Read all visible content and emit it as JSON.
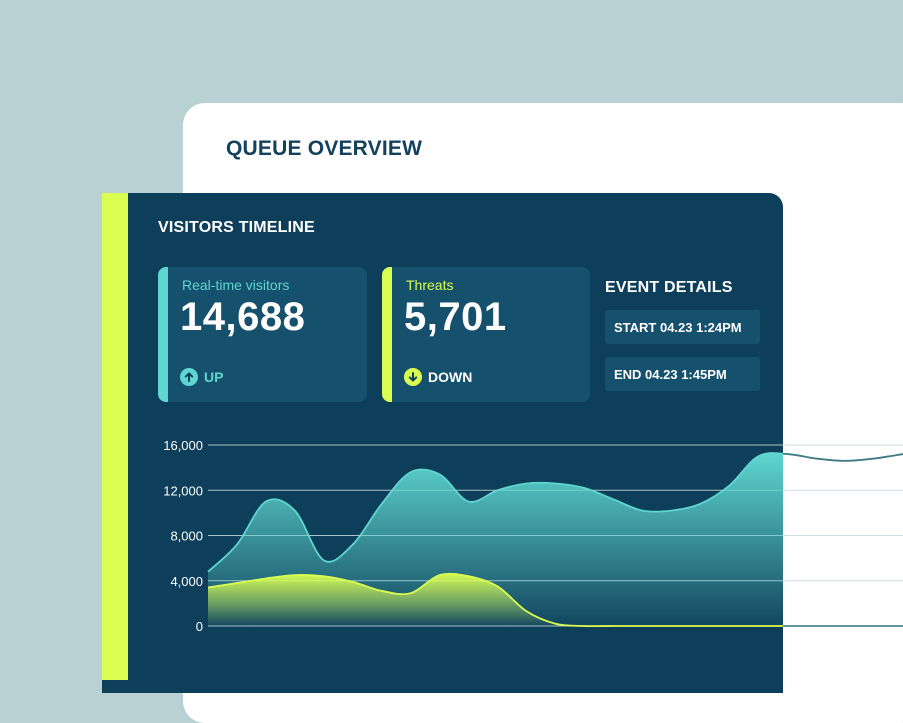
{
  "queue_overview": {
    "title": "QUEUE OVERVIEW"
  },
  "visitors_timeline": {
    "title": "VISITORS TIMELINE",
    "stats": [
      {
        "label": "Real-time visitors",
        "value": "14,688",
        "trend": "UP",
        "trend_icon": "arrow-up-icon",
        "color": "#5fd6cf"
      },
      {
        "label": "Threats",
        "value": "5,701",
        "trend": "DOWN",
        "trend_icon": "arrow-down-icon",
        "color": "#dbff50"
      }
    ],
    "event_details": {
      "title": "EVENT DETAILS",
      "start": "START 04.23 1:24PM",
      "end": "END 04.23 1:45PM"
    }
  },
  "chart_data": {
    "type": "area",
    "y_ticks": [
      "16,000",
      "12,000",
      "8,000",
      "4,000",
      "0"
    ],
    "ylim": [
      0,
      16000
    ],
    "grid": true,
    "series": [
      {
        "values": [
          4800,
          7200,
          11000,
          10200,
          5800,
          7200,
          10800,
          13600,
          13400,
          11000,
          12000,
          12600,
          12600,
          12200,
          11200,
          10200,
          10200,
          10800,
          12400,
          15000,
          15200,
          14800,
          14600,
          14800,
          15200
        ],
        "color": "#5fd6cf"
      },
      {
        "values": [
          3400,
          3800,
          4200,
          4500,
          4400,
          3900,
          3100,
          2900,
          4500,
          4400,
          3500,
          1300,
          200,
          0,
          0,
          0,
          0,
          0,
          0,
          0,
          0,
          0,
          0,
          0,
          0
        ],
        "color": "#dbff50"
      }
    ]
  },
  "colors": {
    "accent_lime": "#dbff50",
    "accent_teal": "#5fd6cf",
    "panel": "#0e3f5a",
    "card": "#15506d"
  }
}
